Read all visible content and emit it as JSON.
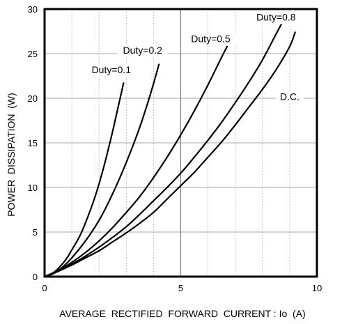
{
  "chart_data": {
    "type": "line",
    "title": "",
    "xlabel": "AVERAGE  RECTIFIED  FORWARD  CURRENT : Io  (A)",
    "ylabel": "POWER  DISSIPATION  (W)",
    "xlim": [
      0,
      10
    ],
    "ylim": [
      0,
      30
    ],
    "x_major_ticks": [
      0,
      5,
      10
    ],
    "x_minor_gridlines": [
      1,
      2,
      3,
      4,
      6,
      7,
      8,
      9
    ],
    "x_major_gridlines": [
      5
    ],
    "y_major_ticks": [
      0,
      5,
      10,
      15,
      20,
      25,
      30
    ],
    "grid": true,
    "legend": "none (curves labeled directly)",
    "series": [
      {
        "name": "Duty=0.1",
        "points": [
          [
            0,
            0
          ],
          [
            0.2,
            0.2
          ],
          [
            0.5,
            0.9
          ],
          [
            0.8,
            2.0
          ],
          [
            1.0,
            3.0
          ],
          [
            1.3,
            4.6
          ],
          [
            1.6,
            6.8
          ],
          [
            1.9,
            9.4
          ],
          [
            2.2,
            12.6
          ],
          [
            2.5,
            16.3
          ],
          [
            2.7,
            19.0
          ],
          [
            2.9,
            21.7
          ]
        ]
      },
      {
        "name": "Duty=0.2",
        "points": [
          [
            0,
            0
          ],
          [
            0.3,
            0.3
          ],
          [
            0.6,
            0.9
          ],
          [
            1.0,
            2.1
          ],
          [
            1.5,
            4.0
          ],
          [
            2.0,
            6.3
          ],
          [
            2.5,
            9.3
          ],
          [
            3.0,
            12.8
          ],
          [
            3.5,
            16.8
          ],
          [
            3.9,
            20.6
          ],
          [
            4.2,
            23.8
          ]
        ]
      },
      {
        "name": "Duty=0.5",
        "points": [
          [
            0,
            0
          ],
          [
            0.5,
            0.7
          ],
          [
            1.0,
            1.6
          ],
          [
            1.5,
            2.7
          ],
          [
            2.0,
            4.0
          ],
          [
            2.5,
            5.5
          ],
          [
            3.0,
            7.2
          ],
          [
            3.5,
            9.0
          ],
          [
            4.0,
            11.1
          ],
          [
            4.5,
            13.4
          ],
          [
            5.0,
            15.9
          ],
          [
            5.5,
            18.6
          ],
          [
            6.0,
            21.5
          ],
          [
            6.5,
            24.6
          ],
          [
            6.7,
            25.8
          ]
        ]
      },
      {
        "name": "Duty=0.8",
        "points": [
          [
            0,
            0
          ],
          [
            0.5,
            0.6
          ],
          [
            1.0,
            1.4
          ],
          [
            1.5,
            2.3
          ],
          [
            2.0,
            3.3
          ],
          [
            2.5,
            4.4
          ],
          [
            3.0,
            5.6
          ],
          [
            3.5,
            7.0
          ],
          [
            4.0,
            8.5
          ],
          [
            4.5,
            10.0
          ],
          [
            5.0,
            11.6
          ],
          [
            5.5,
            13.4
          ],
          [
            6.0,
            15.3
          ],
          [
            6.5,
            17.3
          ],
          [
            7.0,
            19.5
          ],
          [
            7.5,
            21.8
          ],
          [
            8.0,
            24.3
          ],
          [
            8.5,
            27.2
          ],
          [
            8.8,
            28.9
          ]
        ]
      },
      {
        "name": "D.C.",
        "points": [
          [
            0,
            0
          ],
          [
            0.5,
            0.6
          ],
          [
            1.0,
            1.3
          ],
          [
            1.5,
            2.1
          ],
          [
            2.0,
            2.9
          ],
          [
            2.5,
            3.9
          ],
          [
            3.0,
            4.9
          ],
          [
            3.5,
            6.0
          ],
          [
            4.0,
            7.2
          ],
          [
            4.5,
            8.7
          ],
          [
            5.0,
            10.2
          ],
          [
            5.5,
            11.7
          ],
          [
            6.0,
            13.4
          ],
          [
            6.5,
            15.1
          ],
          [
            7.0,
            17.0
          ],
          [
            7.5,
            19.0
          ],
          [
            8.0,
            21.0
          ],
          [
            8.5,
            23.2
          ],
          [
            9.0,
            25.8
          ],
          [
            9.2,
            27.4
          ]
        ]
      }
    ],
    "annotations": [
      {
        "text": "Duty=0.1",
        "x": 2.45,
        "y": 22.8
      },
      {
        "text": "Duty=0.2",
        "x": 3.6,
        "y": 25.0
      },
      {
        "text": "Duty=0.5",
        "x": 6.1,
        "y": 26.3
      },
      {
        "text": "Duty=0.8",
        "x": 8.5,
        "y": 28.7
      },
      {
        "text": "D.C.",
        "x": 9.0,
        "y": 19.8
      }
    ]
  }
}
